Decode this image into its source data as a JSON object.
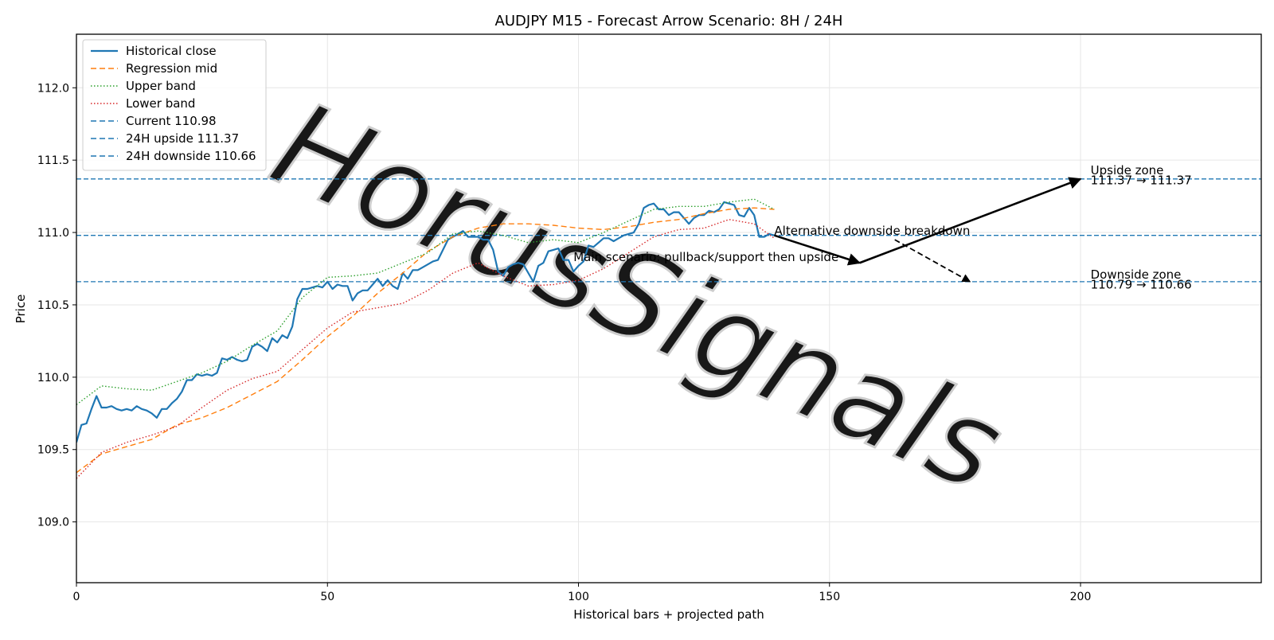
{
  "chart_data": {
    "type": "line",
    "title": "AUDJPY M15 - Forecast Arrow Scenario: 8H / 24H",
    "xlabel": "Historical bars + projected path",
    "ylabel": "Price",
    "xlim": [
      0,
      236
    ],
    "ylim": [
      108.58,
      112.37
    ],
    "xticks": [
      0,
      50,
      100,
      150,
      200
    ],
    "yticks": [
      109.0,
      109.5,
      110.0,
      110.5,
      111.0,
      111.5,
      112.0
    ],
    "grid": true,
    "legend_position": "top-left",
    "watermark": "HorusSignals",
    "colors": {
      "close": "#1f77b4",
      "regression": "#ff7f0e",
      "upper": "#2ca02c",
      "lower": "#d62728",
      "levels": "#1f77b4",
      "arrows": "#000000",
      "grid": "#e6e6e6",
      "watermark": "#c8c8c8"
    },
    "legend": [
      {
        "label": "Historical close",
        "style": "solid",
        "color": "#1f77b4"
      },
      {
        "label": "Regression mid",
        "style": "dashed",
        "color": "#ff7f0e"
      },
      {
        "label": "Upper band",
        "style": "dotted",
        "color": "#2ca02c"
      },
      {
        "label": "Lower band",
        "style": "dotted",
        "color": "#d62728"
      },
      {
        "label": "Current 110.98",
        "style": "dashed",
        "color": "#1f77b4"
      },
      {
        "label": "24H upside 111.37",
        "style": "dashed",
        "color": "#1f77b4"
      },
      {
        "label": "24H downside 110.66",
        "style": "dashed",
        "color": "#1f77b4"
      }
    ],
    "horizontal_lines": [
      {
        "name": "current",
        "y": 110.98
      },
      {
        "name": "upside",
        "y": 111.37
      },
      {
        "name": "downside",
        "y": 110.66
      }
    ],
    "series": [
      {
        "name": "Historical close",
        "style": "solid",
        "color": "#1f77b4",
        "x": [
          0,
          1,
          2,
          3,
          4,
          5,
          6,
          7,
          8,
          9,
          10,
          11,
          12,
          13,
          14,
          15,
          16,
          17,
          18,
          19,
          20,
          21,
          22,
          23,
          24,
          25,
          26,
          27,
          28,
          29,
          30,
          31,
          32,
          33,
          34,
          35,
          36,
          37,
          38,
          39,
          40,
          41,
          42,
          43,
          44,
          45,
          46,
          47,
          48,
          49,
          50,
          51,
          52,
          53,
          54,
          55,
          56,
          57,
          58,
          59,
          60,
          61,
          62,
          63,
          64,
          65,
          66,
          67,
          68,
          69,
          70,
          71,
          72,
          73,
          74,
          75,
          76,
          77,
          78,
          79,
          80,
          81,
          82,
          83,
          84,
          85,
          86,
          87,
          88,
          89,
          90,
          91,
          92,
          93,
          94,
          95,
          96,
          97,
          98,
          99,
          100,
          101,
          102,
          103,
          104,
          105,
          106,
          107,
          108,
          109,
          110,
          111,
          112,
          113,
          114,
          115,
          116,
          117,
          118,
          119,
          120,
          121,
          122,
          123,
          124,
          125,
          126,
          127,
          128,
          129,
          130,
          131,
          132,
          133,
          134,
          135,
          136,
          137,
          138,
          139
        ],
        "y": [
          109.55,
          109.67,
          109.68,
          109.78,
          109.87,
          109.79,
          109.79,
          109.8,
          109.78,
          109.77,
          109.78,
          109.77,
          109.8,
          109.78,
          109.77,
          109.75,
          109.72,
          109.78,
          109.78,
          109.82,
          109.85,
          109.9,
          109.98,
          109.98,
          110.02,
          110.01,
          110.02,
          110.01,
          110.03,
          110.13,
          110.12,
          110.14,
          110.12,
          110.11,
          110.12,
          110.21,
          110.23,
          110.21,
          110.18,
          110.27,
          110.24,
          110.29,
          110.27,
          110.35,
          110.54,
          110.61,
          110.61,
          110.62,
          110.63,
          110.62,
          110.66,
          110.61,
          110.64,
          110.63,
          110.63,
          110.53,
          110.58,
          110.6,
          110.6,
          110.64,
          110.68,
          110.63,
          110.67,
          110.63,
          110.61,
          110.72,
          110.68,
          110.74,
          110.74,
          110.76,
          110.78,
          110.8,
          110.81,
          110.88,
          110.95,
          110.97,
          110.99,
          111.01,
          110.97,
          110.97,
          110.97,
          110.95,
          110.95,
          110.88,
          110.73,
          110.7,
          110.76,
          110.78,
          110.79,
          110.78,
          110.72,
          110.66,
          110.77,
          110.79,
          110.87,
          110.88,
          110.89,
          110.81,
          110.81,
          110.73,
          110.77,
          110.8,
          110.91,
          110.9,
          110.93,
          110.96,
          110.96,
          110.94,
          110.96,
          110.98,
          110.99,
          111.0,
          111.06,
          111.17,
          111.19,
          111.2,
          111.16,
          111.16,
          111.12,
          111.14,
          111.14,
          111.1,
          111.06,
          111.1,
          111.12,
          111.12,
          111.15,
          111.14,
          111.16,
          111.21,
          111.2,
          111.19,
          111.12,
          111.11,
          111.17,
          111.12,
          110.97,
          110.97,
          110.99,
          110.98
        ]
      },
      {
        "name": "Regression mid",
        "style": "dashed",
        "color": "#ff7f0e",
        "x": [
          0,
          5,
          10,
          15,
          20,
          25,
          30,
          35,
          40,
          45,
          50,
          55,
          60,
          65,
          70,
          75,
          80,
          85,
          90,
          95,
          100,
          105,
          110,
          115,
          120,
          125,
          130,
          135,
          139
        ],
        "y": [
          109.34,
          109.47,
          109.52,
          109.57,
          109.67,
          109.72,
          109.79,
          109.88,
          109.97,
          110.12,
          110.28,
          110.42,
          110.58,
          110.72,
          110.87,
          110.97,
          111.03,
          111.06,
          111.06,
          111.05,
          111.03,
          111.02,
          111.04,
          111.07,
          111.09,
          111.13,
          111.16,
          111.17,
          111.16
        ]
      },
      {
        "name": "Upper band",
        "style": "dotted",
        "color": "#2ca02c",
        "x": [
          0,
          5,
          10,
          15,
          20,
          25,
          30,
          35,
          40,
          45,
          50,
          55,
          60,
          65,
          70,
          75,
          80,
          85,
          90,
          95,
          100,
          105,
          110,
          115,
          120,
          125,
          130,
          135,
          139
        ],
        "y": [
          109.81,
          109.94,
          109.92,
          109.91,
          109.97,
          110.03,
          110.11,
          110.22,
          110.32,
          110.55,
          110.69,
          110.7,
          110.72,
          110.79,
          110.86,
          110.99,
          111.01,
          110.98,
          110.93,
          110.95,
          110.93,
          111.0,
          111.08,
          111.16,
          111.18,
          111.18,
          111.21,
          111.23,
          111.16
        ]
      },
      {
        "name": "Lower band",
        "style": "dotted",
        "color": "#d62728",
        "x": [
          0,
          5,
          10,
          15,
          20,
          25,
          30,
          35,
          40,
          45,
          50,
          55,
          60,
          65,
          70,
          75,
          80,
          85,
          90,
          95,
          100,
          105,
          110,
          115,
          120,
          125,
          130,
          135,
          139
        ],
        "y": [
          109.3,
          109.48,
          109.55,
          109.6,
          109.66,
          109.79,
          109.91,
          109.99,
          110.04,
          110.19,
          110.34,
          110.45,
          110.48,
          110.51,
          110.6,
          110.72,
          110.79,
          110.7,
          110.63,
          110.64,
          110.67,
          110.75,
          110.86,
          110.97,
          111.02,
          111.03,
          111.09,
          111.06,
          110.96
        ]
      }
    ],
    "arrows": [
      {
        "name": "main-leg-1",
        "from": [
          139,
          110.98
        ],
        "to": [
          156,
          110.79
        ],
        "style": "solid"
      },
      {
        "name": "main-leg-2",
        "from": [
          156,
          110.79
        ],
        "to": [
          200,
          111.37
        ],
        "style": "solid"
      },
      {
        "name": "alternative",
        "from": [
          163,
          110.95
        ],
        "to": [
          178,
          110.66
        ],
        "style": "dashed"
      }
    ],
    "annotations": [
      {
        "name": "main-scenario-label",
        "text": "Main scenario: pullback/support then upside",
        "x": 99,
        "y": 110.83
      },
      {
        "name": "alternative-label",
        "text": "Alternative downside breakdown",
        "x": 139,
        "y": 111.01
      },
      {
        "name": "upside-zone-title",
        "text": "Upside zone",
        "x": 202,
        "y": 111.43
      },
      {
        "name": "upside-zone-range",
        "text": "111.37 → 111.37",
        "x": 202,
        "y": 111.36
      },
      {
        "name": "downside-zone-title",
        "text": "Downside zone",
        "x": 202,
        "y": 110.71
      },
      {
        "name": "downside-zone-range",
        "text": "110.79 → 110.66",
        "x": 202,
        "y": 110.64
      }
    ]
  }
}
